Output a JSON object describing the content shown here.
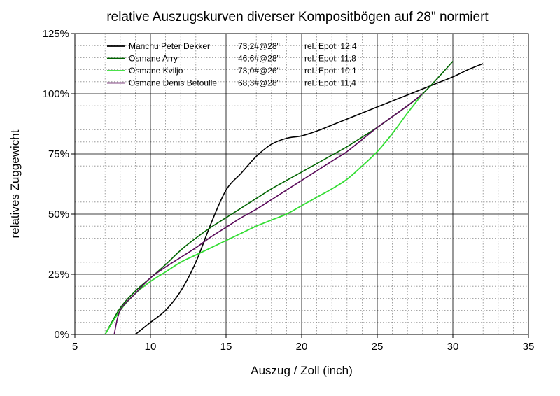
{
  "chart_data": {
    "type": "line",
    "title": "relative Auszugskurven diverser Kompositbögen auf 28\" normiert",
    "xlabel": "Auszug / Zoll (inch)",
    "ylabel": "relatives Zuggewicht",
    "xlim": [
      5,
      35
    ],
    "ylim": [
      0,
      125
    ],
    "x_ticks": [
      "5",
      "10",
      "15",
      "20",
      "25",
      "30",
      "35"
    ],
    "y_ticks": [
      "0%",
      "25%",
      "50%",
      "75%",
      "100%",
      "125%"
    ],
    "grid": "major solid, minor dotted",
    "legend_position": "top-left",
    "series": [
      {
        "name": "Manchu Peter Dekker",
        "draw_weight": "73,2#@28\"",
        "epot": "rel. Epot: 12,4",
        "color": "#000000",
        "x": [
          9,
          10,
          11,
          12,
          13,
          14,
          15,
          16,
          17,
          18,
          19,
          20,
          21,
          22,
          23,
          24,
          25,
          26,
          27,
          28,
          29,
          30,
          31,
          32
        ],
        "y": [
          0,
          5,
          10,
          18,
          30,
          46,
          60,
          67,
          74,
          79,
          81.5,
          82.5,
          84.5,
          87,
          89.5,
          92,
          94.5,
          97,
          99.5,
          102,
          104.5,
          107,
          110,
          112.5
        ]
      },
      {
        "name": "Osmane Arry",
        "draw_weight": "46,6#@28\"",
        "epot": "rel. Epot: 11,8",
        "color": "#006400",
        "x": [
          7,
          8,
          9,
          10,
          11,
          12,
          13,
          14,
          15,
          16,
          17,
          18,
          19,
          20,
          21,
          22,
          23,
          24,
          25,
          26,
          27,
          28,
          29,
          30
        ],
        "y": [
          0,
          11,
          18,
          23.5,
          29,
          35,
          40,
          44.5,
          48.5,
          52.5,
          56.5,
          60.5,
          64,
          67.5,
          71,
          74.5,
          78,
          82,
          86,
          90.5,
          95,
          100,
          106.5,
          113.5
        ]
      },
      {
        "name": "Osmane Kviljo",
        "draw_weight": "73,0#@26\"",
        "epot": "rel. Epot: 10,1",
        "color": "#33dd33",
        "x": [
          7,
          8,
          9,
          10,
          11,
          12,
          13,
          14,
          15,
          16,
          17,
          18,
          19,
          20,
          21,
          22,
          23,
          24,
          25,
          26,
          27,
          28
        ],
        "y": [
          0,
          10,
          17,
          22,
          26,
          30,
          33,
          36,
          39,
          42,
          45,
          47.5,
          50,
          53.5,
          57,
          60.5,
          64.5,
          70,
          76,
          83.5,
          92,
          100
        ]
      },
      {
        "name": "Osmane Denis Betoulle",
        "draw_weight": "68,3#@28\"",
        "epot": "rel. Epot: 11,4",
        "color": "#5a0a5a",
        "x": [
          7.6,
          8,
          9,
          10,
          11,
          12,
          13,
          14,
          15,
          16,
          17,
          18,
          19,
          20,
          21,
          22,
          23,
          24,
          25,
          26,
          27,
          28
        ],
        "y": [
          0,
          10,
          17,
          23.5,
          28,
          32,
          36,
          40.5,
          44.5,
          48.5,
          52,
          56,
          60,
          64,
          68,
          72,
          76,
          81,
          86,
          90.5,
          95,
          100
        ]
      }
    ]
  }
}
